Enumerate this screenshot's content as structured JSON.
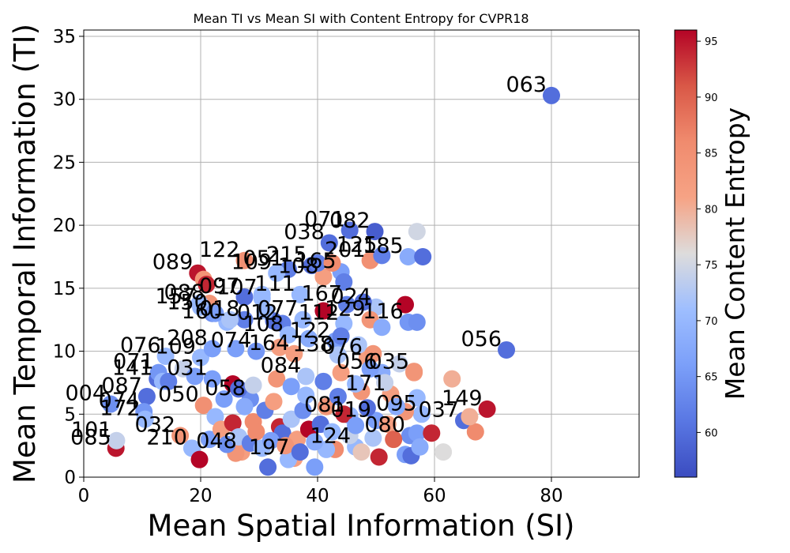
{
  "chart_data": {
    "type": "scatter",
    "title": "Mean TI vs Mean SI with Content Entropy for CVPR18",
    "xlabel": "Mean Spatial Information (SI)",
    "ylabel": "Mean Temporal Information (TI)",
    "colorbar_label": "Mean Content Entropy",
    "xlim": [
      0,
      95
    ],
    "ylim": [
      0,
      35.5
    ],
    "xticks": [
      0,
      20,
      40,
      60,
      80
    ],
    "yticks": [
      0,
      5,
      10,
      15,
      20,
      25,
      30,
      35
    ],
    "clim": [
      56,
      96
    ],
    "colorbar_ticks": [
      60,
      65,
      70,
      75,
      80,
      85,
      90,
      95
    ],
    "colormap": "coolwarm",
    "grid": true,
    "points": [
      {
        "label": "063",
        "x": 80,
        "y": 30.3,
        "c": 60
      },
      {
        "label": "056",
        "x": 72.3,
        "y": 10.1,
        "c": 60
      },
      {
        "label": "035",
        "x": 56.5,
        "y": 8.3,
        "c": 83
      },
      {
        "label": "149",
        "x": 69,
        "y": 5.4,
        "c": 95
      },
      {
        "label": "085",
        "x": 5.5,
        "y": 2.3,
        "c": 95
      },
      {
        "label": "004",
        "x": 4.6,
        "y": 5.8,
        "c": 64
      },
      {
        "label": "087",
        "x": 10.8,
        "y": 6.4,
        "c": 60
      },
      {
        "label": "074",
        "x": 10.3,
        "y": 5.2,
        "c": 65
      },
      {
        "label": "101",
        "x": 5.6,
        "y": 2.9,
        "c": 74
      },
      {
        "label": "172",
        "x": 10.5,
        "y": 4.6,
        "c": 70
      },
      {
        "label": "141",
        "x": 12.6,
        "y": 7.8,
        "c": 60
      },
      {
        "label": "076",
        "x": 14,
        "y": 9.6,
        "c": 70
      },
      {
        "label": "071",
        "x": 12.8,
        "y": 8.3,
        "c": 65
      },
      {
        "label": "109",
        "x": 20,
        "y": 9.5,
        "c": 70
      },
      {
        "label": "208",
        "x": 22,
        "y": 10.2,
        "c": 66
      },
      {
        "label": "089",
        "x": 19.5,
        "y": 16.2,
        "c": 95
      },
      {
        "label": "122",
        "x": 27.5,
        "y": 17.2,
        "c": 85
      },
      {
        "label": "088",
        "x": 21.5,
        "y": 13.8,
        "c": 84
      },
      {
        "label": "157",
        "x": 20,
        "y": 13.5,
        "c": 70
      },
      {
        "label": "150",
        "x": 22,
        "y": 13,
        "c": 64
      },
      {
        "label": "160",
        "x": 24.5,
        "y": 12.3,
        "c": 70
      },
      {
        "label": "097",
        "x": 27.5,
        "y": 14.3,
        "c": 60
      },
      {
        "label": "107",
        "x": 30.5,
        "y": 14.2,
        "c": 70
      },
      {
        "label": "074",
        "x": 29.5,
        "y": 10,
        "c": 65
      },
      {
        "label": "018",
        "x": 27.5,
        "y": 12.5,
        "c": 62
      },
      {
        "label": "038",
        "x": 42,
        "y": 18.6,
        "c": 60
      },
      {
        "label": "071",
        "x": 45.5,
        "y": 19.6,
        "c": 60
      },
      {
        "label": "082",
        "x": 49.8,
        "y": 19.5,
        "c": 58
      },
      {
        "label": "201",
        "x": 49,
        "y": 17.2,
        "c": 85
      },
      {
        "label": "125",
        "x": 51,
        "y": 17.6,
        "c": 62
      },
      {
        "label": "185",
        "x": 55.5,
        "y": 17.5,
        "c": 68
      },
      {
        "label": "051",
        "x": 35,
        "y": 16.5,
        "c": 62
      },
      {
        "label": "109",
        "x": 33,
        "y": 16.2,
        "c": 70
      },
      {
        "label": "215",
        "x": 39,
        "y": 16.8,
        "c": 60
      },
      {
        "label": "165",
        "x": 44,
        "y": 16.3,
        "c": 66
      },
      {
        "label": "108",
        "x": 41,
        "y": 15.9,
        "c": 82
      },
      {
        "label": "111",
        "x": 37,
        "y": 14.5,
        "c": 70
      },
      {
        "label": "077",
        "x": 37.5,
        "y": 12.5,
        "c": 70
      },
      {
        "label": "167",
        "x": 45,
        "y": 13.7,
        "c": 62
      },
      {
        "label": "024",
        "x": 50,
        "y": 13.5,
        "c": 72
      },
      {
        "label": "116",
        "x": 55.5,
        "y": 12.3,
        "c": 65
      },
      {
        "label": "112",
        "x": 44.5,
        "y": 12.2,
        "c": 70
      },
      {
        "label": "129",
        "x": 49,
        "y": 12.5,
        "c": 84
      },
      {
        "label": "012",
        "x": 34,
        "y": 12.2,
        "c": 62
      },
      {
        "label": "108",
        "x": 35,
        "y": 11.3,
        "c": 70
      },
      {
        "label": "122",
        "x": 43,
        "y": 10.8,
        "c": 66
      },
      {
        "label": "164",
        "x": 36,
        "y": 9.8,
        "c": 82
      },
      {
        "label": "138",
        "x": 43.5,
        "y": 9.7,
        "c": 72
      },
      {
        "label": "076",
        "x": 48.5,
        "y": 9.5,
        "c": 82
      },
      {
        "label": "056",
        "x": 51,
        "y": 8.3,
        "c": 68
      },
      {
        "label": "048",
        "x": 27,
        "y": 2,
        "c": 82
      },
      {
        "label": "197",
        "x": 36,
        "y": 1.5,
        "c": 82
      },
      {
        "label": "124",
        "x": 46.5,
        "y": 2.4,
        "c": 70
      },
      {
        "label": "080",
        "x": 55.8,
        "y": 3.3,
        "c": 64
      },
      {
        "label": "037",
        "x": 65,
        "y": 4.5,
        "c": 60
      },
      {
        "label": "210",
        "x": 18.5,
        "y": 2.3,
        "c": 70
      },
      {
        "label": "032",
        "x": 16.5,
        "y": 3.3,
        "c": 84
      },
      {
        "label": "058",
        "x": 28.5,
        "y": 6.2,
        "c": 64
      },
      {
        "label": "081",
        "x": 45.5,
        "y": 4.9,
        "c": 70
      },
      {
        "label": "095",
        "x": 57.8,
        "y": 5,
        "c": 70
      },
      {
        "label": "050",
        "x": 20.5,
        "y": 5.7,
        "c": 85
      },
      {
        "label": "031",
        "x": 22,
        "y": 7.8,
        "c": 66
      },
      {
        "label": "084",
        "x": 38,
        "y": 8,
        "c": 72
      },
      {
        "label": "019",
        "x": 50,
        "y": 4.5,
        "c": 66
      },
      {
        "label": "171",
        "x": 52.5,
        "y": 6.6,
        "c": 82
      },
      {
        "label": "",
        "x": 57,
        "y": 19.5,
        "c": 75
      },
      {
        "label": "",
        "x": 58,
        "y": 17.5,
        "c": 60
      },
      {
        "label": "",
        "x": 41,
        "y": 13.2,
        "c": 96
      },
      {
        "label": "",
        "x": 55,
        "y": 13.7,
        "c": 96
      },
      {
        "label": "",
        "x": 57,
        "y": 12.3,
        "c": 64
      },
      {
        "label": "",
        "x": 51,
        "y": 11.9,
        "c": 68
      },
      {
        "label": "",
        "x": 47.8,
        "y": 13.9,
        "c": 60
      },
      {
        "label": "",
        "x": 44.5,
        "y": 15.5,
        "c": 62
      },
      {
        "label": "",
        "x": 40,
        "y": 17,
        "c": 62
      },
      {
        "label": "",
        "x": 42.5,
        "y": 17,
        "c": 86
      },
      {
        "label": "",
        "x": 30.5,
        "y": 14.5,
        "c": 70
      },
      {
        "label": "",
        "x": 20.5,
        "y": 15.7,
        "c": 84
      },
      {
        "label": "",
        "x": 21,
        "y": 15.3,
        "c": 94
      },
      {
        "label": "",
        "x": 19.8,
        "y": 13.8,
        "c": 70
      },
      {
        "label": "",
        "x": 22.5,
        "y": 13,
        "c": 66
      },
      {
        "label": "",
        "x": 25,
        "y": 12.5,
        "c": 72
      },
      {
        "label": "",
        "x": 32.5,
        "y": 12.4,
        "c": 60
      },
      {
        "label": "",
        "x": 31,
        "y": 13.2,
        "c": 70
      },
      {
        "label": "",
        "x": 26,
        "y": 10.2,
        "c": 66
      },
      {
        "label": "",
        "x": 33.5,
        "y": 10.3,
        "c": 82
      },
      {
        "label": "",
        "x": 38.5,
        "y": 11,
        "c": 68
      },
      {
        "label": "",
        "x": 44,
        "y": 11.2,
        "c": 62
      },
      {
        "label": "",
        "x": 47,
        "y": 10.5,
        "c": 72
      },
      {
        "label": "",
        "x": 49.5,
        "y": 9.8,
        "c": 84
      },
      {
        "label": "",
        "x": 54,
        "y": 9,
        "c": 74
      },
      {
        "label": "",
        "x": 56.5,
        "y": 8.4,
        "c": 84
      },
      {
        "label": "",
        "x": 63,
        "y": 7.8,
        "c": 80
      },
      {
        "label": "",
        "x": 57,
        "y": 6.3,
        "c": 70
      },
      {
        "label": "",
        "x": 55,
        "y": 5.2,
        "c": 84
      },
      {
        "label": "",
        "x": 57,
        "y": 3.5,
        "c": 66
      },
      {
        "label": "",
        "x": 59.5,
        "y": 3.5,
        "c": 94
      },
      {
        "label": "",
        "x": 61.5,
        "y": 2,
        "c": 76
      },
      {
        "label": "",
        "x": 67,
        "y": 3.6,
        "c": 86
      },
      {
        "label": "",
        "x": 66,
        "y": 4.8,
        "c": 80
      },
      {
        "label": "",
        "x": 55,
        "y": 1.8,
        "c": 66
      },
      {
        "label": "",
        "x": 56,
        "y": 1.7,
        "c": 60
      },
      {
        "label": "",
        "x": 57.5,
        "y": 2.4,
        "c": 68
      },
      {
        "label": "",
        "x": 50.5,
        "y": 1.6,
        "c": 94
      },
      {
        "label": "",
        "x": 47.5,
        "y": 2,
        "c": 78
      },
      {
        "label": "",
        "x": 43,
        "y": 2.2,
        "c": 86
      },
      {
        "label": "",
        "x": 41.5,
        "y": 2.2,
        "c": 70
      },
      {
        "label": "",
        "x": 39.5,
        "y": 0.8,
        "c": 66
      },
      {
        "label": "",
        "x": 35,
        "y": 1.4,
        "c": 70
      },
      {
        "label": "",
        "x": 31.5,
        "y": 0.8,
        "c": 60
      },
      {
        "label": "",
        "x": 26,
        "y": 1.9,
        "c": 84
      },
      {
        "label": "",
        "x": 19.8,
        "y": 1.4,
        "c": 96
      },
      {
        "label": "",
        "x": 21.5,
        "y": 3,
        "c": 66
      },
      {
        "label": "",
        "x": 25.5,
        "y": 7.4,
        "c": 96
      },
      {
        "label": "",
        "x": 26.5,
        "y": 7,
        "c": 60
      },
      {
        "label": "",
        "x": 27.5,
        "y": 5.6,
        "c": 68
      },
      {
        "label": "",
        "x": 29,
        "y": 4.4,
        "c": 86
      },
      {
        "label": "",
        "x": 31,
        "y": 5.3,
        "c": 62
      },
      {
        "label": "",
        "x": 32.5,
        "y": 6,
        "c": 82
      },
      {
        "label": "",
        "x": 33.5,
        "y": 4,
        "c": 94
      },
      {
        "label": "",
        "x": 34,
        "y": 3.5,
        "c": 60
      },
      {
        "label": "",
        "x": 35.5,
        "y": 4.6,
        "c": 72
      },
      {
        "label": "",
        "x": 36.5,
        "y": 3,
        "c": 82
      },
      {
        "label": "",
        "x": 37.5,
        "y": 5.3,
        "c": 64
      },
      {
        "label": "",
        "x": 38.5,
        "y": 3.8,
        "c": 96
      },
      {
        "label": "",
        "x": 39.5,
        "y": 2.8,
        "c": 68
      },
      {
        "label": "",
        "x": 40.5,
        "y": 4.2,
        "c": 60
      },
      {
        "label": "",
        "x": 41.5,
        "y": 5.6,
        "c": 84
      },
      {
        "label": "",
        "x": 42.5,
        "y": 3.6,
        "c": 70
      },
      {
        "label": "",
        "x": 43.5,
        "y": 6.4,
        "c": 62
      },
      {
        "label": "",
        "x": 44.5,
        "y": 5,
        "c": 94
      },
      {
        "label": "",
        "x": 45.5,
        "y": 3.3,
        "c": 74
      },
      {
        "label": "",
        "x": 46.5,
        "y": 4.1,
        "c": 66
      },
      {
        "label": "",
        "x": 47.5,
        "y": 6.8,
        "c": 84
      },
      {
        "label": "",
        "x": 48.5,
        "y": 5.5,
        "c": 60
      },
      {
        "label": "",
        "x": 49.5,
        "y": 3.1,
        "c": 72
      },
      {
        "label": "",
        "x": 52,
        "y": 4.2,
        "c": 82
      },
      {
        "label": "",
        "x": 53,
        "y": 3,
        "c": 90
      },
      {
        "label": "",
        "x": 22.5,
        "y": 4.8,
        "c": 70
      },
      {
        "label": "",
        "x": 23.5,
        "y": 3.8,
        "c": 82
      },
      {
        "label": "",
        "x": 24.5,
        "y": 2.6,
        "c": 64
      },
      {
        "label": "",
        "x": 25.5,
        "y": 4.3,
        "c": 94
      },
      {
        "label": "",
        "x": 26.5,
        "y": 3.2,
        "c": 72
      },
      {
        "label": "",
        "x": 28.5,
        "y": 2.7,
        "c": 62
      },
      {
        "label": "",
        "x": 29.5,
        "y": 3.6,
        "c": 86
      },
      {
        "label": "",
        "x": 30.5,
        "y": 2.3,
        "c": 70
      },
      {
        "label": "",
        "x": 32,
        "y": 2.9,
        "c": 66
      },
      {
        "label": "",
        "x": 34.5,
        "y": 2.5,
        "c": 84
      },
      {
        "label": "",
        "x": 37,
        "y": 2,
        "c": 60
      },
      {
        "label": "",
        "x": 24,
        "y": 6.2,
        "c": 66
      },
      {
        "label": "",
        "x": 29,
        "y": 7.3,
        "c": 74
      },
      {
        "label": "",
        "x": 33,
        "y": 7.8,
        "c": 84
      },
      {
        "label": "",
        "x": 35.5,
        "y": 7.2,
        "c": 66
      },
      {
        "label": "",
        "x": 38,
        "y": 6.5,
        "c": 70
      },
      {
        "label": "",
        "x": 41,
        "y": 7.6,
        "c": 62
      },
      {
        "label": "",
        "x": 44,
        "y": 8.3,
        "c": 82
      },
      {
        "label": "",
        "x": 46.5,
        "y": 7.4,
        "c": 70
      },
      {
        "label": "",
        "x": 49,
        "y": 8.6,
        "c": 66
      },
      {
        "label": "",
        "x": 51.5,
        "y": 7.5,
        "c": 74
      },
      {
        "label": "",
        "x": 53.5,
        "y": 5.6,
        "c": 68
      },
      {
        "label": "",
        "x": 13.5,
        "y": 7.6,
        "c": 70
      },
      {
        "label": "",
        "x": 14.5,
        "y": 7.6,
        "c": 62
      },
      {
        "label": "",
        "x": 17,
        "y": 8.6,
        "c": 74
      },
      {
        "label": "",
        "x": 19,
        "y": 8,
        "c": 66
      }
    ]
  }
}
